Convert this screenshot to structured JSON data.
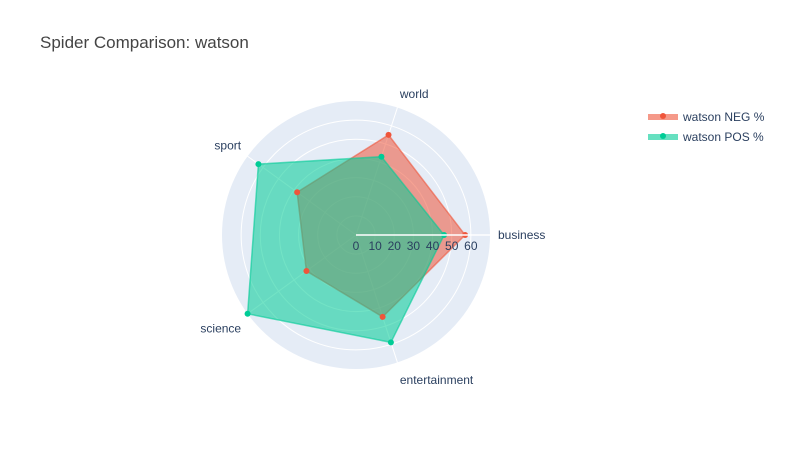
{
  "title": "Spider Comparison: watson",
  "legend": [
    {
      "label": "watson NEG %"
    },
    {
      "label": "watson POS %"
    }
  ],
  "colors": {
    "neg": "#EF553B",
    "pos": "#00CC96",
    "polar_bg": "#E5ECF6",
    "grid": "#ffffff",
    "text": "#2a3f5f"
  },
  "chart_data": {
    "type": "radar",
    "categories": [
      "business",
      "entertainment",
      "science",
      "sport",
      "world"
    ],
    "series": [
      {
        "name": "watson NEG %",
        "values": [
          57,
          45,
          32,
          38,
          55
        ]
      },
      {
        "name": "watson POS %",
        "values": [
          46,
          59,
          70,
          63,
          43
        ]
      }
    ],
    "radial_ticks": [
      "0",
      "10",
      "20",
      "30",
      "40",
      "50",
      "60"
    ],
    "radial_range": [
      0,
      70
    ],
    "grid": true
  }
}
